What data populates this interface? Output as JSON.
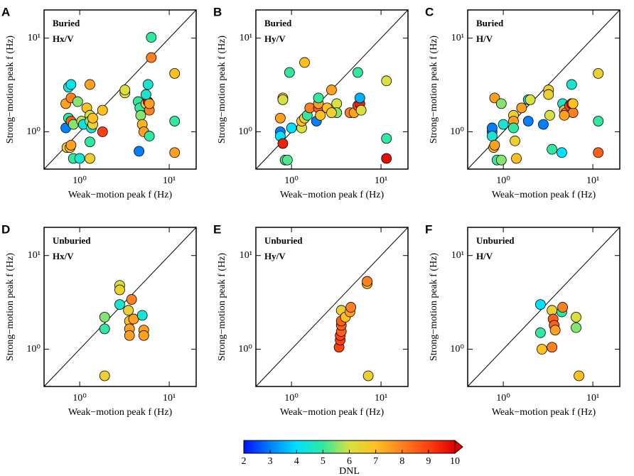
{
  "chart_data": [
    {
      "type": "scatter",
      "panel": "A",
      "notes": [
        "Buried",
        "Hx/V"
      ],
      "xlabel": "Weak−motion peak f (Hz)",
      "ylabel": "Strong−motion peak f (Hz)",
      "log": true,
      "xlim": [
        0.4,
        20
      ],
      "ylim": [
        0.4,
        20
      ],
      "xticks": [
        {
          "value": 1,
          "label": "10⁰"
        },
        {
          "value": 10,
          "label": "10¹"
        }
      ],
      "yticks": [
        {
          "value": 1,
          "label": "10⁰"
        },
        {
          "value": 10,
          "label": "10¹"
        }
      ],
      "x": [
        0.75,
        0.8,
        0.7,
        0.8,
        0.95,
        0.7,
        0.75,
        0.8,
        0.85,
        0.72,
        0.78,
        0.8,
        0.85,
        1.0,
        1.05,
        1.1,
        1.2,
        1.3,
        1.3,
        1.3,
        1.35,
        1.4,
        1.4,
        1.3,
        1.3,
        1.8,
        1.8,
        3.2,
        3.2,
        4.5,
        4.7,
        4.8,
        5.0,
        5.2,
        4.6,
        5.5,
        5.8,
        6.0,
        5.8,
        6.3,
        6.3,
        6.0,
        11.5,
        11.5,
        11.5,
        6.0,
        5.5
      ],
      "y": [
        3.0,
        3.2,
        2.0,
        2.3,
        2.1,
        1.1,
        1.4,
        1.3,
        1.2,
        0.68,
        0.68,
        0.72,
        0.52,
        0.52,
        1.3,
        1.2,
        1.8,
        3.2,
        1.5,
        1.3,
        1.1,
        1.2,
        1.4,
        0.52,
        0.78,
        1.7,
        1.0,
        2.6,
        2.8,
        2.1,
        1.8,
        1.5,
        1.2,
        1.0,
        0.62,
        2.0,
        2.1,
        1.7,
        3.2,
        10.2,
        6.2,
        0.9,
        4.2,
        1.3,
        0.6,
        2.0,
        2.5
      ],
      "dnl": [
        4.5,
        4.2,
        7.5,
        8,
        5.5,
        3,
        5,
        8.5,
        5.5,
        6.5,
        6.8,
        7.5,
        5,
        4.5,
        5.8,
        4.3,
        7,
        7.5,
        6,
        5.5,
        4.5,
        6.5,
        7,
        6.5,
        5,
        7,
        9,
        6.2,
        6,
        5,
        5,
        5.5,
        7.2,
        7.5,
        3,
        6.5,
        9.8,
        8,
        4.5,
        5,
        8,
        5,
        7,
        5,
        7.5,
        7.5,
        4.5
      ]
    },
    {
      "type": "scatter",
      "panel": "B",
      "notes": [
        "Buried",
        "Hy/V"
      ],
      "xlabel": "Weak−motion peak f (Hz)",
      "ylabel": "Strong−motion peak f (Hz)",
      "log": true,
      "xlim": [
        0.4,
        20
      ],
      "ylim": [
        0.4,
        20
      ],
      "xticks": [
        {
          "value": 1,
          "label": "10⁰"
        },
        {
          "value": 10,
          "label": "10¹"
        }
      ],
      "yticks": [
        {
          "value": 1,
          "label": "10⁰"
        },
        {
          "value": 10,
          "label": "10¹"
        }
      ],
      "x": [
        0.75,
        0.75,
        0.75,
        0.8,
        0.8,
        0.8,
        0.85,
        0.9,
        0.95,
        1.0,
        1.3,
        1.3,
        1.4,
        1.4,
        1.5,
        1.6,
        1.9,
        2.0,
        2.0,
        2.0,
        2.1,
        2.5,
        2.8,
        3.2,
        3.2,
        4.5,
        5.0,
        5.5,
        5.8,
        5.8,
        5.5,
        6.0,
        11.5,
        11.5,
        11.5,
        2.8
      ],
      "y": [
        1.0,
        0.9,
        1.4,
        2.3,
        2.2,
        0.75,
        0.5,
        0.5,
        4.3,
        1.1,
        1.1,
        1.3,
        5.5,
        1.4,
        1.5,
        1.8,
        1.3,
        1.8,
        2.0,
        2.3,
        1.5,
        1.8,
        2.8,
        2.0,
        1.6,
        1.6,
        1.6,
        1.9,
        2.0,
        2.3,
        4.3,
        1.7,
        3.5,
        0.85,
        0.52,
        1.6
      ],
      "dnl": [
        3,
        4,
        7.5,
        7,
        6,
        9.5,
        5,
        5.2,
        5,
        4,
        6,
        7,
        7,
        6.5,
        5,
        8,
        3,
        8.5,
        7.5,
        5,
        7,
        7,
        7.5,
        6,
        5.5,
        8,
        7.5,
        9,
        9.5,
        3.5,
        5,
        6,
        6,
        5,
        9.8,
        6.5
      ]
    },
    {
      "type": "scatter",
      "panel": "C",
      "notes": [
        "Buried",
        "H/V"
      ],
      "xlabel": "Weak−motion peak f (Hz)",
      "ylabel": "Strong−motion peak f (Hz)",
      "log": true,
      "xlim": [
        0.4,
        20
      ],
      "ylim": [
        0.4,
        20
      ],
      "xticks": [
        {
          "value": 1,
          "label": "10⁰"
        },
        {
          "value": 10,
          "label": "10¹"
        }
      ],
      "yticks": [
        {
          "value": 1,
          "label": "10⁰"
        },
        {
          "value": 10,
          "label": "10¹"
        }
      ],
      "x": [
        0.75,
        0.75,
        0.75,
        0.78,
        0.8,
        0.8,
        0.85,
        0.95,
        0.95,
        1.0,
        1.3,
        1.3,
        1.3,
        1.35,
        1.4,
        1.6,
        1.9,
        1.9,
        2.0,
        2.8,
        3.2,
        3.2,
        3.3,
        3.5,
        4.5,
        4.6,
        4.8,
        5.0,
        5.5,
        5.8,
        6.0,
        5.8,
        6.0,
        11.5,
        11.5,
        11.5,
        4.8
      ],
      "y": [
        1.0,
        1.1,
        0.9,
        0.68,
        0.72,
        2.3,
        0.5,
        0.5,
        2.0,
        1.2,
        1.5,
        1.3,
        1.1,
        0.8,
        0.52,
        1.8,
        2.2,
        1.3,
        2.2,
        1.2,
        2.8,
        2.5,
        1.5,
        0.65,
        0.6,
        2.0,
        1.7,
        1.6,
        1.9,
        2.0,
        1.6,
        3.2,
        2.0,
        4.2,
        1.3,
        0.6,
        1.5
      ],
      "dnl": [
        3,
        3,
        4.5,
        7,
        7.5,
        7.5,
        5,
        5.5,
        5.5,
        4.5,
        6.5,
        7.5,
        5,
        6.5,
        7,
        7.5,
        4,
        3,
        6,
        3,
        6.5,
        6.5,
        6,
        5,
        4,
        4.5,
        7,
        8,
        9,
        9.8,
        8,
        4.5,
        7,
        6.5,
        5,
        8.5,
        7.5
      ]
    },
    {
      "type": "scatter",
      "panel": "D",
      "notes": [
        "Unburied",
        "Hx/V"
      ],
      "xlabel": "Weak−motion peak f (Hz)",
      "ylabel": "Strong−motion peak f (Hz)",
      "log": true,
      "xlim": [
        0.4,
        20
      ],
      "ylim": [
        0.4,
        20
      ],
      "xticks": [
        {
          "value": 1,
          "label": "10⁰"
        },
        {
          "value": 10,
          "label": "10¹"
        }
      ],
      "yticks": [
        {
          "value": 1,
          "label": "10⁰"
        },
        {
          "value": 10,
          "label": "10¹"
        }
      ],
      "x": [
        1.9,
        1.9,
        1.9,
        2.8,
        2.8,
        2.8,
        3.5,
        3.6,
        3.6,
        3.6,
        3.8,
        4.0,
        5.0,
        5.2,
        5.2
      ],
      "y": [
        0.52,
        1.65,
        2.2,
        4.8,
        4.3,
        3.0,
        2.6,
        2.0,
        1.65,
        1.4,
        3.4,
        2.1,
        2.3,
        1.6,
        1.4
      ],
      "dnl": [
        6.5,
        5,
        5.5,
        6,
        6.5,
        4.5,
        6.5,
        7,
        7.5,
        7.5,
        8,
        7.5,
        4.5,
        7.5,
        7.5
      ]
    },
    {
      "type": "scatter",
      "panel": "E",
      "notes": [
        "Unburied",
        "Hy/V"
      ],
      "xlabel": "Weak−motion peak f (Hz)",
      "ylabel": "Strong−motion peak f (Hz)",
      "log": true,
      "xlim": [
        0.4,
        20
      ],
      "ylim": [
        0.4,
        20
      ],
      "xticks": [
        {
          "value": 1,
          "label": "10⁰"
        },
        {
          "value": 10,
          "label": "10¹"
        }
      ],
      "yticks": [
        {
          "value": 1,
          "label": "10⁰"
        },
        {
          "value": 10,
          "label": "10¹"
        }
      ],
      "x": [
        3.4,
        3.5,
        3.5,
        3.6,
        3.6,
        3.6,
        3.6,
        4.0,
        4.5,
        4.6,
        7.0,
        7.0,
        7.2
      ],
      "y": [
        1.05,
        1.25,
        1.4,
        1.55,
        1.8,
        2.0,
        2.6,
        2.2,
        2.5,
        2.8,
        5.0,
        5.3,
        0.52
      ],
      "dnl": [
        9,
        9,
        9,
        8.5,
        8.5,
        8.5,
        6.5,
        7,
        7.5,
        8,
        7,
        8,
        6.5
      ]
    },
    {
      "type": "scatter",
      "panel": "F",
      "notes": [
        "Unburied",
        "H/V"
      ],
      "xlabel": "Weak−motion peak f (Hz)",
      "ylabel": "Strong−motion peak f (Hz)",
      "log": true,
      "xlim": [
        0.4,
        20
      ],
      "ylim": [
        0.4,
        20
      ],
      "xticks": [
        {
          "value": 1,
          "label": "10⁰"
        },
        {
          "value": 10,
          "label": "10¹"
        }
      ],
      "yticks": [
        {
          "value": 1,
          "label": "10⁰"
        },
        {
          "value": 10,
          "label": "10¹"
        }
      ],
      "x": [
        2.6,
        2.6,
        2.7,
        3.5,
        3.5,
        3.6,
        3.7,
        3.8,
        4.5,
        4.6,
        6.5,
        6.5,
        7.0
      ],
      "y": [
        3.0,
        1.5,
        1.0,
        1.05,
        2.6,
        2.1,
        1.8,
        1.6,
        2.5,
        2.8,
        2.2,
        1.7,
        0.52
      ],
      "dnl": [
        4,
        5,
        7,
        8,
        6.5,
        8.5,
        8.5,
        7.5,
        5,
        8,
        6,
        5.5,
        7
      ]
    }
  ],
  "colorbar": {
    "label": "DNL",
    "lim": [
      2,
      10
    ],
    "ticks": [
      2,
      3,
      4,
      5,
      6,
      7,
      8,
      9,
      10
    ],
    "colors": [
      "#0010ff",
      "#0080ff",
      "#00e0ff",
      "#30e8a0",
      "#d8e040",
      "#ffc020",
      "#ff8020",
      "#ff4010",
      "#e00000"
    ]
  }
}
